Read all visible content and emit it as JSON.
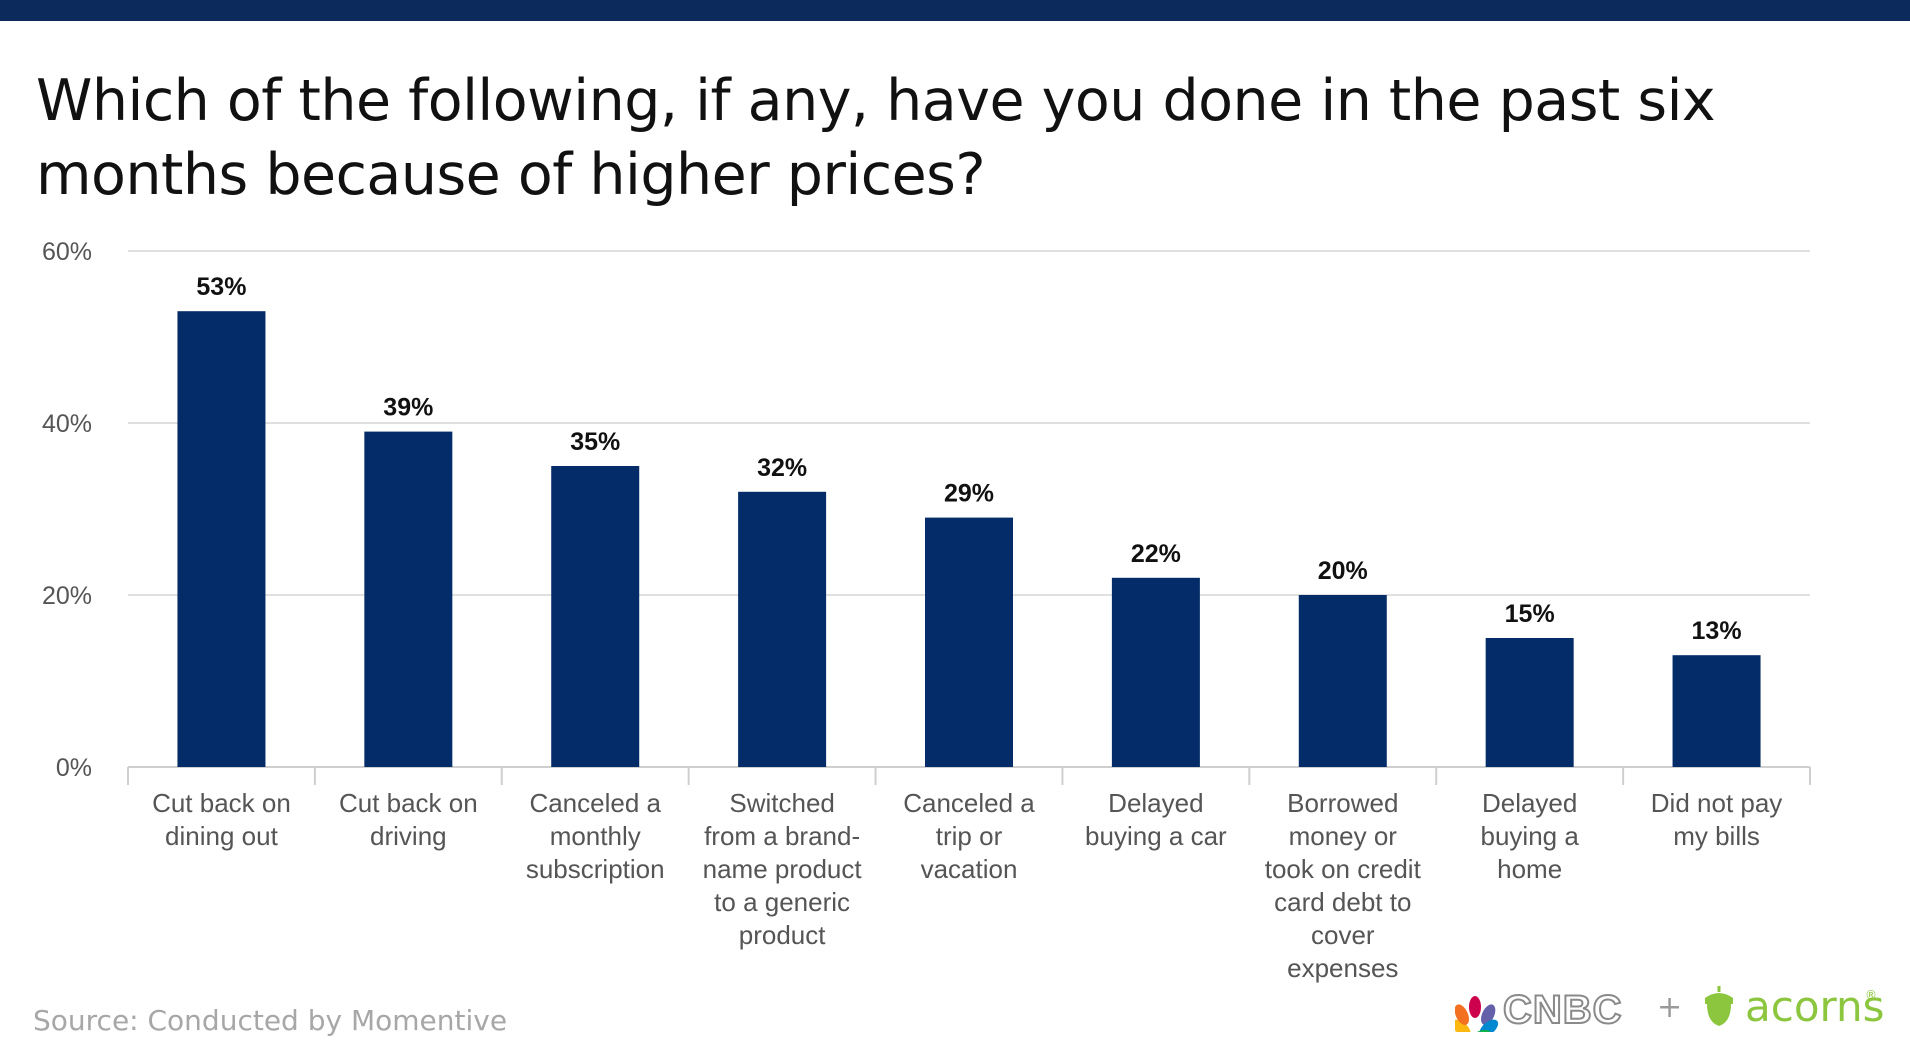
{
  "title": "Which of the following, if any, have you done in the past six months because of higher prices?",
  "source": "Source: Conducted by Momentive",
  "logos": {
    "cnbc": "CNBC",
    "plus": "+",
    "acorns": "acorns",
    "registered": "®"
  },
  "colors": {
    "bar": "#042c68",
    "topbar": "#0c2a5c",
    "grid": "#e0e0e0",
    "axis_text": "#555555"
  },
  "chart_data": {
    "type": "bar",
    "title": "Which of the following, if any, have you done in the past six months because of higher prices?",
    "xlabel": "",
    "ylabel": "",
    "ylim": [
      0,
      60
    ],
    "yticks": [
      0,
      20,
      40,
      60
    ],
    "ytick_labels": [
      "0%",
      "20%",
      "40%",
      "60%"
    ],
    "grid": true,
    "categories": [
      "Cut back on dining out",
      "Cut back on driving",
      "Canceled a monthly subscription",
      "Switched from a brand-name product to a generic product",
      "Canceled a trip or vacation",
      "Delayed buying a car",
      "Borrowed money or took on credit card debt to cover expenses",
      "Delayed buying a home",
      "Did not pay my bills"
    ],
    "category_lines": [
      [
        "Cut back on",
        "dining out"
      ],
      [
        "Cut back on",
        "driving"
      ],
      [
        "Canceled a",
        "monthly",
        "subscription"
      ],
      [
        "Switched",
        "from a brand-",
        "name product",
        "to a generic",
        "product"
      ],
      [
        "Canceled a",
        "trip or",
        "vacation"
      ],
      [
        "Delayed",
        "buying a car"
      ],
      [
        "Borrowed",
        "money or",
        "took on credit",
        "card debt to",
        "cover",
        "expenses"
      ],
      [
        "Delayed",
        "buying a",
        "home"
      ],
      [
        "Did not pay",
        "my bills"
      ]
    ],
    "values": [
      53,
      39,
      35,
      32,
      29,
      22,
      20,
      15,
      13
    ],
    "value_labels": [
      "53%",
      "39%",
      "35%",
      "32%",
      "29%",
      "22%",
      "20%",
      "15%",
      "13%"
    ]
  }
}
